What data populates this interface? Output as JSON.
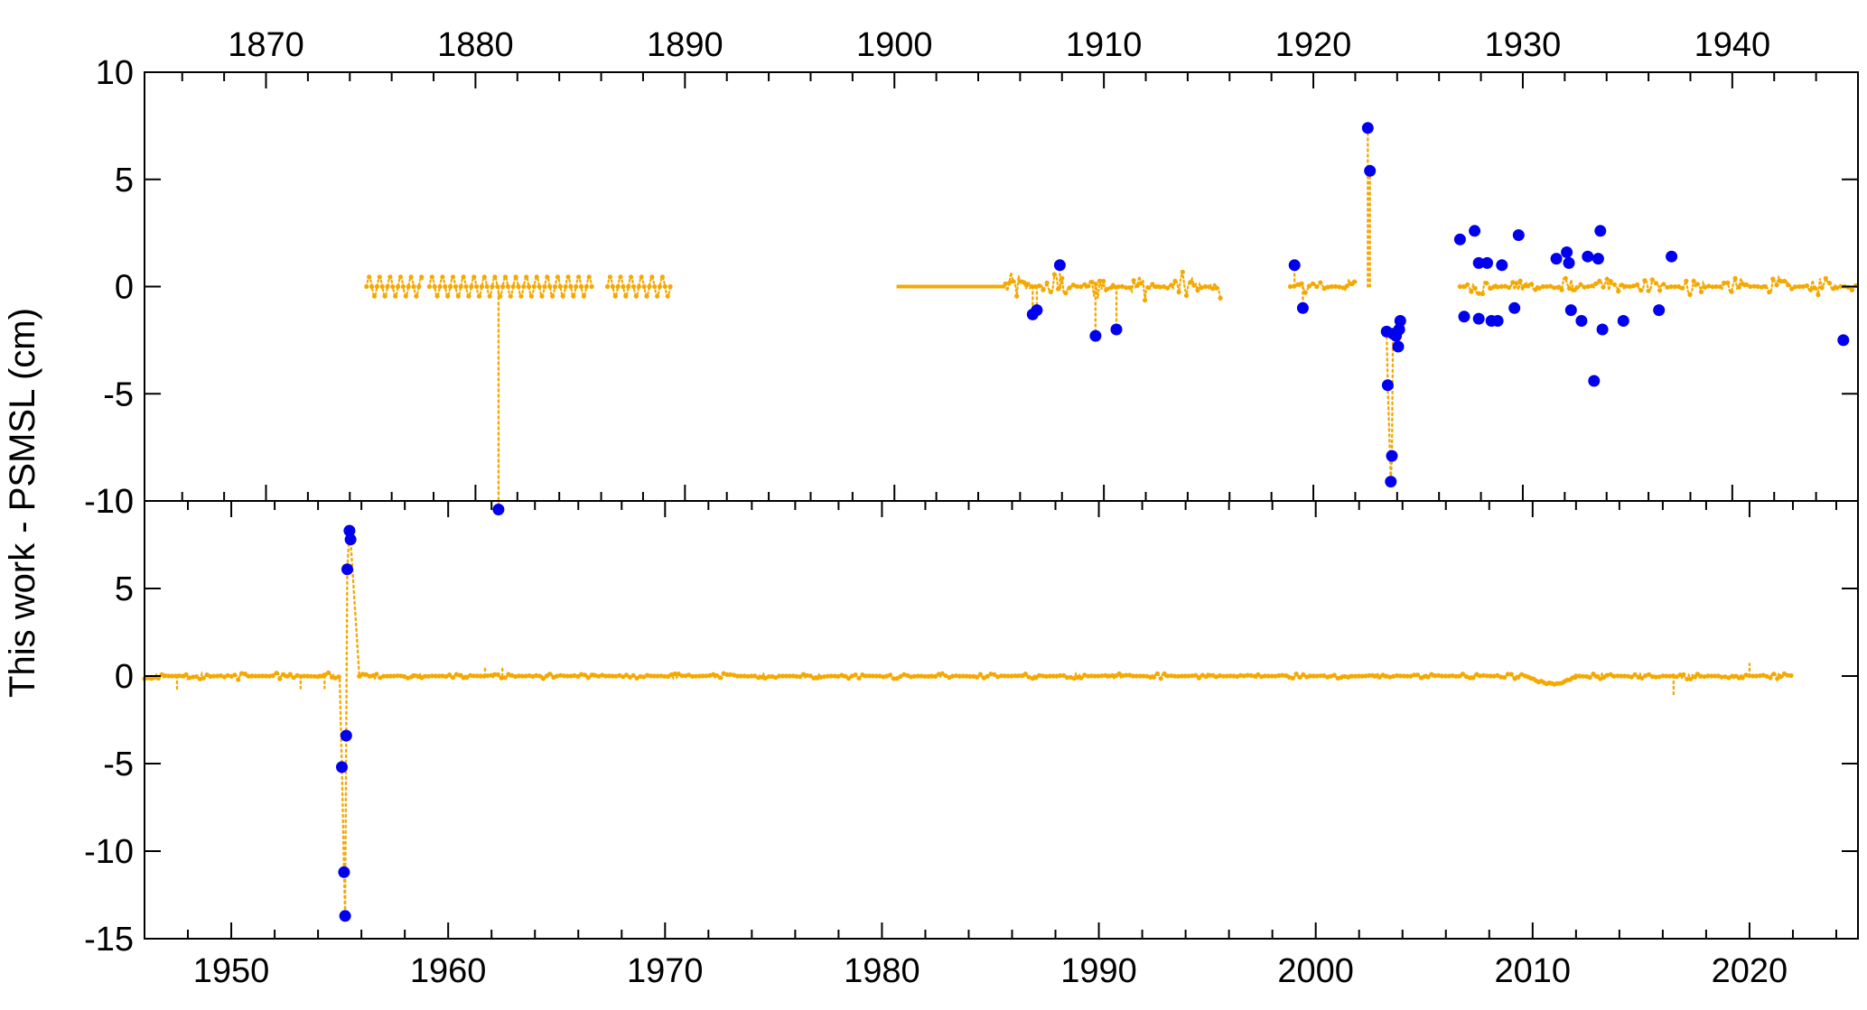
{
  "chart_data": [
    {
      "panel": "top",
      "type": "scatter",
      "title": "",
      "xlabel": "",
      "ylabel": "",
      "x_axis_position": "top",
      "xlim": [
        1864.2,
        1946.0
      ],
      "ylim": [
        -10,
        10
      ],
      "xticks": [
        1870,
        1880,
        1890,
        1900,
        1910,
        1920,
        1930,
        1940
      ],
      "xtick_labels": [
        "1870",
        "1880",
        "1890",
        "1900",
        "1910",
        "1920",
        "1930",
        "1940"
      ],
      "xminor_step": 2,
      "yticks": [
        10,
        5,
        0,
        -5,
        -10
      ],
      "ytick_labels": [
        "10",
        "5",
        "0",
        "-5",
        "-10"
      ],
      "series": [
        {
          "style": "orange-dotted-with-small-dots",
          "color": "#f5a800",
          "segments": [
            {
              "kind": "wave",
              "x_start": 1874.8,
              "x_end": 1877.5,
              "amplitude": 0.45,
              "period": 0.5
            },
            {
              "kind": "wave",
              "x_start": 1877.8,
              "x_end": 1885.6,
              "amplitude": 0.45,
              "period": 0.5
            },
            {
              "kind": "wave",
              "x_start": 1886.3,
              "x_end": 1889.3,
              "amplitude": 0.45,
              "period": 0.5
            },
            {
              "kind": "line",
              "x_start": 1900.1,
              "x_end": 1905.3,
              "y": 0
            },
            {
              "kind": "noise",
              "x_start": 1905.3,
              "x_end": 1915.6,
              "amplitude": 0.7,
              "step": 0.09
            },
            {
              "kind": "noise",
              "x_start": 1918.9,
              "x_end": 1922.1,
              "amplitude": 0.35,
              "step": 0.09
            },
            {
              "kind": "noise",
              "x_start": 1927.0,
              "x_end": 1946.0,
              "amplitude": 0.45,
              "step": 0.09
            }
          ],
          "spikes": [
            {
              "x": 1881.1,
              "y": -10.4
            },
            {
              "x": 1906.6,
              "y": -1.3
            },
            {
              "x": 1906.8,
              "y": -1.1
            },
            {
              "x": 1907.9,
              "y": 1.0
            },
            {
              "x": 1909.6,
              "y": -2.3
            },
            {
              "x": 1910.6,
              "y": -2.0
            },
            {
              "x": 1919.1,
              "y": 1.0
            },
            {
              "x": 1919.5,
              "y": -1.0
            },
            {
              "x": 1922.6,
              "y": 7.4
            },
            {
              "x": 1922.7,
              "y": 5.4
            }
          ],
          "dips": [
            {
              "x_start": 1923.5,
              "x_end": 1924.2,
              "points": [
                [
                  1923.5,
                  -2.1
                ],
                [
                  1923.55,
                  -4.6
                ],
                [
                  1923.7,
                  -9.1
                ],
                [
                  1923.75,
                  -7.9
                ],
                [
                  1923.8,
                  -2.2
                ],
                [
                  1923.95,
                  -2.3
                ],
                [
                  1924.05,
                  -2.8
                ],
                [
                  1924.15,
                  -1.6
                ]
              ]
            }
          ]
        },
        {
          "style": "blue-dots",
          "color": "#0000ee",
          "outliers": [
            [
              1881.1,
              -10.4
            ],
            [
              1906.6,
              -1.3
            ],
            [
              1906.8,
              -1.1
            ],
            [
              1907.9,
              1.0
            ],
            [
              1909.6,
              -2.3
            ],
            [
              1910.6,
              -2.0
            ],
            [
              1919.1,
              1.0
            ],
            [
              1919.5,
              -1.0
            ],
            [
              1922.6,
              7.4
            ],
            [
              1922.7,
              5.4
            ],
            [
              1923.5,
              -2.1
            ],
            [
              1923.55,
              -4.6
            ],
            [
              1923.7,
              -9.1
            ],
            [
              1923.75,
              -7.9
            ],
            [
              1923.8,
              -2.2
            ],
            [
              1923.95,
              -2.3
            ],
            [
              1924.05,
              -2.8
            ],
            [
              1924.1,
              -2.0
            ],
            [
              1924.15,
              -1.6
            ],
            [
              1927.0,
              2.2
            ],
            [
              1927.2,
              -1.4
            ],
            [
              1927.7,
              2.6
            ],
            [
              1927.9,
              1.1
            ],
            [
              1927.9,
              -1.5
            ],
            [
              1928.3,
              1.1
            ],
            [
              1928.5,
              -1.6
            ],
            [
              1928.8,
              -1.6
            ],
            [
              1929.0,
              1.0
            ],
            [
              1929.6,
              -1.0
            ],
            [
              1929.8,
              2.4
            ],
            [
              1931.6,
              1.3
            ],
            [
              1932.1,
              1.6
            ],
            [
              1932.2,
              1.1
            ],
            [
              1932.3,
              -1.1
            ],
            [
              1932.8,
              -1.6
            ],
            [
              1933.1,
              1.4
            ],
            [
              1933.4,
              -4.4
            ],
            [
              1933.6,
              1.3
            ],
            [
              1933.7,
              2.6
            ],
            [
              1933.8,
              -2.0
            ],
            [
              1934.8,
              -1.6
            ],
            [
              1936.5,
              -1.1
            ],
            [
              1937.1,
              1.4
            ],
            [
              1945.3,
              -2.5
            ]
          ]
        }
      ]
    },
    {
      "panel": "bottom",
      "type": "scatter",
      "title": "",
      "xlabel": "",
      "ylabel": "",
      "x_axis_position": "bottom",
      "xlim": [
        1946.0,
        2025.0
      ],
      "ylim": [
        -15,
        10
      ],
      "xticks": [
        1950,
        1960,
        1970,
        1980,
        1990,
        2000,
        2010,
        2020
      ],
      "xtick_labels": [
        "1950",
        "1960",
        "1970",
        "1980",
        "1990",
        "2000",
        "2010",
        "2020"
      ],
      "xminor_step": 2,
      "yticks": [
        10,
        5,
        0,
        -5,
        -10,
        -15
      ],
      "ytick_labels": [
        "10",
        "5",
        "0",
        "-5",
        "-10",
        "-15"
      ],
      "series": [
        {
          "style": "orange-dotted-with-small-dots",
          "color": "#f5a800",
          "segments": [
            {
              "kind": "noise",
              "x_start": 1946.0,
              "x_end": 1955.0,
              "amplitude": 0.22,
              "step": 0.08
            },
            {
              "kind": "noise",
              "x_start": 1955.9,
              "x_end": 2009.8,
              "amplitude": 0.16,
              "step": 0.08
            },
            {
              "kind": "dip",
              "x_start": 2009.8,
              "x_end": 2012.0,
              "depth": -0.45
            },
            {
              "kind": "noise",
              "x_start": 2012.0,
              "x_end": 2022.0,
              "amplitude": 0.18,
              "step": 0.08
            }
          ],
          "spikes": [
            {
              "x": 1947.5,
              "y": -0.8
            },
            {
              "x": 1953.2,
              "y": -0.7
            },
            {
              "x": 1954.3,
              "y": -0.7
            },
            {
              "x": 1961.7,
              "y": 0.5
            },
            {
              "x": 1962.5,
              "y": 0.5
            },
            {
              "x": 2016.5,
              "y": -1.2
            },
            {
              "x": 2020.0,
              "y": 0.7
            }
          ],
          "dips": [
            {
              "x_start": 1955.0,
              "x_end": 1955.9,
              "points": [
                [
                  1955.0,
                  -0.2
                ],
                [
                  1955.1,
                  -5.2
                ],
                [
                  1955.2,
                  -11.2
                ],
                [
                  1955.25,
                  -13.7
                ],
                [
                  1955.3,
                  -3.4
                ],
                [
                  1955.35,
                  6.1
                ],
                [
                  1955.45,
                  8.3
                ],
                [
                  1955.5,
                  7.8
                ],
                [
                  1955.9,
                  0.1
                ]
              ]
            }
          ]
        },
        {
          "style": "blue-dots",
          "color": "#0000ee",
          "outliers": [
            [
              1955.1,
              -5.2
            ],
            [
              1955.2,
              -11.2
            ],
            [
              1955.25,
              -13.7
            ],
            [
              1955.3,
              -3.4
            ],
            [
              1955.35,
              6.1
            ],
            [
              1955.45,
              8.3
            ],
            [
              1955.5,
              7.8
            ]
          ]
        }
      ]
    }
  ],
  "shared": {
    "ylabel": "This work - PSMSL (cm)"
  }
}
